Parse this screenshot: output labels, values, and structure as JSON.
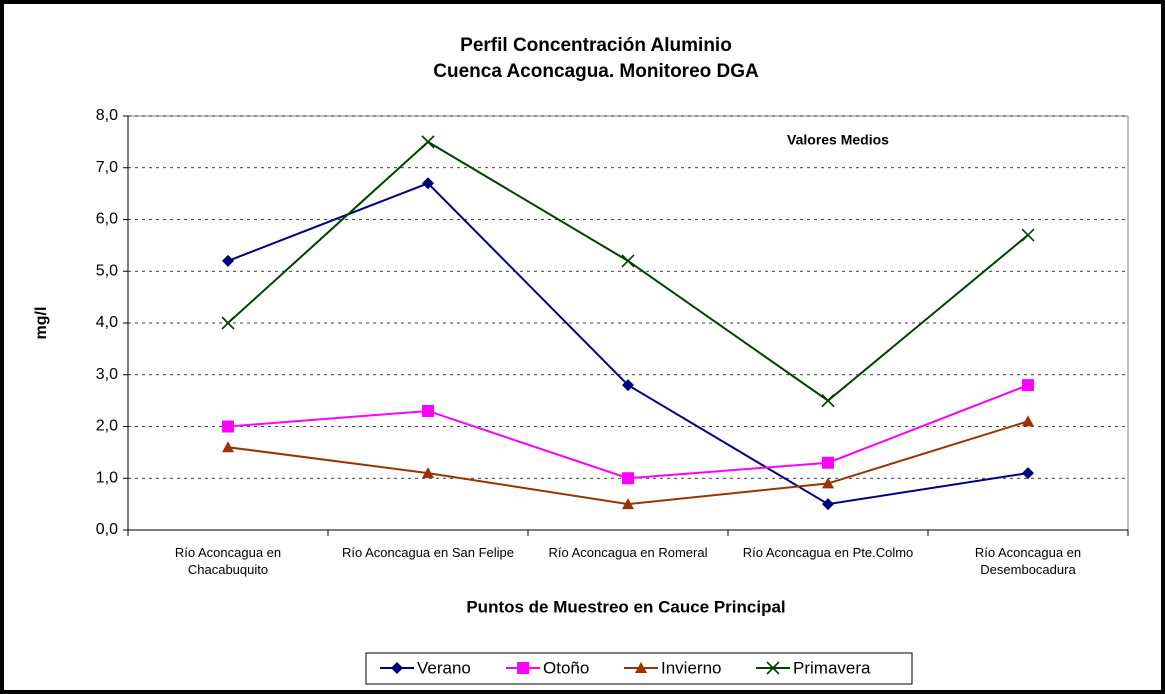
{
  "chart_data": {
    "type": "line",
    "title": "Perfil Concentración Aluminio",
    "subtitle": "Cuenca Aconcagua. Monitoreo DGA",
    "annotation": "Valores Medios",
    "y_label": "mg/l",
    "x_label": "Puntos de Muestreo en Cauce Principal",
    "categories": [
      "Río Aconcagua en Chacabuquito",
      "Río Aconcagua en San Felipe",
      "Río Aconcagua en Romeral",
      "Río Aconcagua en Pte.Colmo",
      "Río Aconcagua en Desembocadura"
    ],
    "series": [
      {
        "name": "Verano",
        "color": "#000080",
        "marker": "diamond",
        "values": [
          5.2,
          6.7,
          2.8,
          0.5,
          1.1
        ]
      },
      {
        "name": "Otoño",
        "color": "#ff00ff",
        "marker": "square",
        "values": [
          2.0,
          2.3,
          1.0,
          1.3,
          2.8
        ]
      },
      {
        "name": "Invierno",
        "color": "#993300",
        "marker": "triangle",
        "values": [
          1.6,
          1.1,
          0.5,
          0.9,
          2.1
        ]
      },
      {
        "name": "Primavera",
        "color": "#004000",
        "marker": "x",
        "values": [
          4.0,
          7.5,
          5.2,
          2.5,
          5.7
        ]
      }
    ],
    "ylim": [
      0,
      8
    ],
    "yticks": [
      {
        "value": 0,
        "label": "0,0"
      },
      {
        "value": 1,
        "label": "1,0"
      },
      {
        "value": 2,
        "label": "2,0"
      },
      {
        "value": 3,
        "label": "3,0"
      },
      {
        "value": 4,
        "label": "4,0"
      },
      {
        "value": 5,
        "label": "5,0"
      },
      {
        "value": 6,
        "label": "6,0"
      },
      {
        "value": 7,
        "label": "7,0"
      },
      {
        "value": 8,
        "label": "8,0"
      }
    ],
    "grid": true,
    "legend": "bottom"
  }
}
